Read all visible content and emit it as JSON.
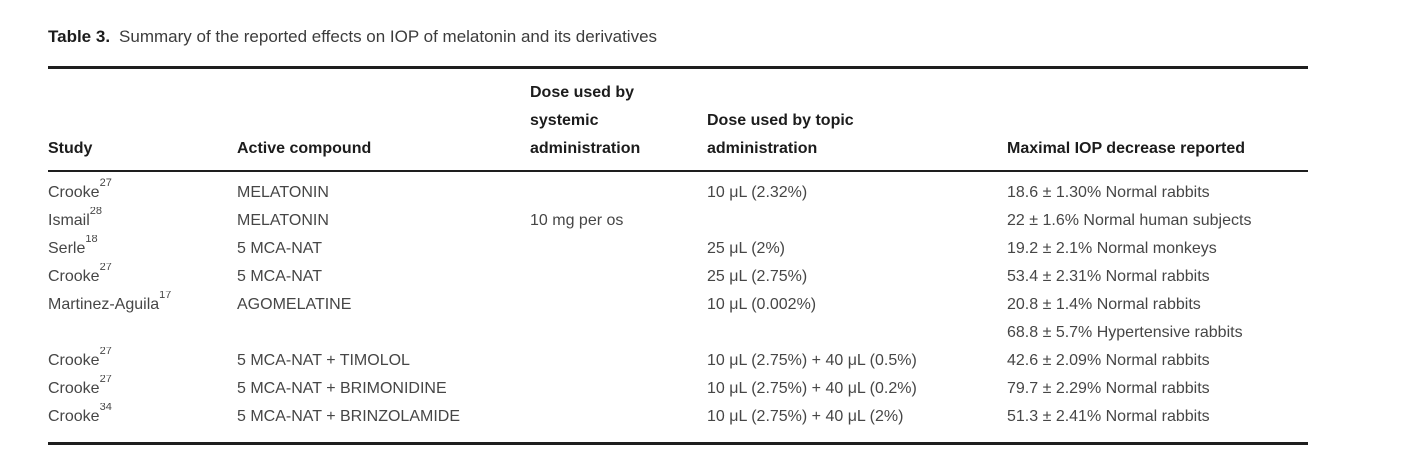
{
  "caption": {
    "label": "Table 3.",
    "text": "Summary of the reported effects on IOP of melatonin and its derivatives"
  },
  "colors": {
    "rule": "#1e1e1e",
    "heading_text": "#1c1c1c",
    "body_text": "#464646",
    "background": "#ffffff"
  },
  "table": {
    "columns": [
      {
        "key": "study",
        "lines": [
          "Study"
        ]
      },
      {
        "key": "compound",
        "lines": [
          "Active compound"
        ]
      },
      {
        "key": "systemic",
        "lines": [
          "Dose used by",
          "systemic",
          "administration"
        ]
      },
      {
        "key": "topic",
        "lines": [
          "Dose used by topic",
          "administration"
        ]
      },
      {
        "key": "decrease",
        "lines": [
          "Maximal IOP decrease reported"
        ]
      }
    ],
    "rows": [
      {
        "study": "Crooke",
        "ref": "27",
        "compound": "MELATONIN",
        "systemic": "",
        "topic": "10 μL (2.32%)",
        "decrease": "18.6 ± 1.30% Normal rabbits"
      },
      {
        "study": "Ismail",
        "ref": "28",
        "compound": "MELATONIN",
        "systemic": "10 mg per os",
        "topic": "",
        "decrease": "22 ± 1.6% Normal human subjects"
      },
      {
        "study": "Serle",
        "ref": "18",
        "compound": "5 MCA-NAT",
        "systemic": "",
        "topic": "25 μL (2%)",
        "decrease": "19.2 ± 2.1% Normal monkeys"
      },
      {
        "study": "Crooke",
        "ref": "27",
        "compound": "5 MCA-NAT",
        "systemic": "",
        "topic": "25 μL (2.75%)",
        "decrease": "53.4 ± 2.31% Normal rabbits"
      },
      {
        "study": "Martinez-Aguila",
        "ref": "17",
        "compound": "AGOMELATINE",
        "systemic": "",
        "topic": "10 μL (0.002%)",
        "decrease": "20.8 ± 1.4% Normal rabbits"
      },
      {
        "study": "",
        "ref": "",
        "compound": "",
        "systemic": "",
        "topic": "",
        "decrease": "68.8 ± 5.7% Hypertensive rabbits"
      },
      {
        "study": "Crooke",
        "ref": "27",
        "compound": "5 MCA-NAT + TIMOLOL",
        "systemic": "",
        "topic": "10 μL (2.75%) + 40 μL (0.5%)",
        "decrease": "42.6 ± 2.09% Normal rabbits"
      },
      {
        "study": "Crooke",
        "ref": "27",
        "compound": "5 MCA-NAT + BRIMONIDINE",
        "systemic": "",
        "topic": "10 μL (2.75%) + 40 μL (0.2%)",
        "decrease": "79.7 ± 2.29% Normal rabbits"
      },
      {
        "study": "Crooke",
        "ref": "34",
        "compound": "5 MCA-NAT + BRINZOLAMIDE",
        "systemic": "",
        "topic": "10 μL (2.75%) + 40 μL (2%)",
        "decrease": "51.3 ± 2.41% Normal rabbits"
      }
    ]
  }
}
